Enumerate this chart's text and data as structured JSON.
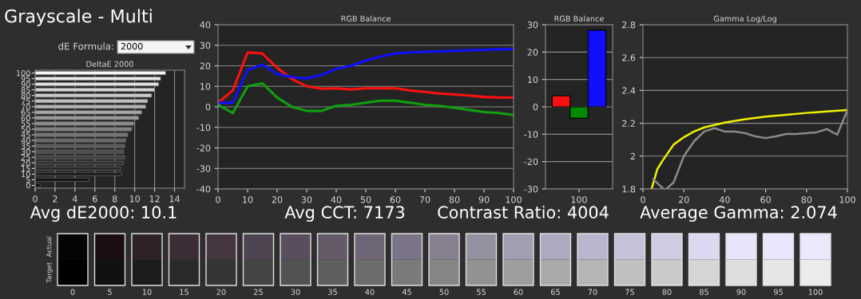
{
  "chart_data": [
    {
      "type": "bar",
      "orientation": "horizontal",
      "title": "DeltaE 2000",
      "annotations": [
        "Grayscale - Multi",
        "dE Formula:",
        "2000",
        "Avg dE2000: 10.1"
      ],
      "categories": [
        "100",
        "95",
        "90",
        "85",
        "80",
        "75",
        "70",
        "65",
        "60",
        "55",
        "50",
        "45",
        "40",
        "35",
        "30",
        "25",
        "20",
        "15",
        "10",
        "5",
        "0"
      ],
      "values": [
        13.1,
        12.6,
        12.4,
        12.0,
        11.7,
        11.3,
        11.1,
        10.7,
        10.4,
        9.9,
        9.7,
        9.3,
        9.1,
        9.0,
        8.9,
        9.0,
        8.9,
        8.6,
        8.7,
        5.4,
        0.5
      ],
      "colors": [
        "#f4f4f4",
        "#ebebeb",
        "#e0e0e0",
        "#d6d6d6",
        "#cbcbcb",
        "#c0c0c0",
        "#b4b4b4",
        "#a8a8a8",
        "#9c9c9c",
        "#8f8f8f",
        "#828282",
        "#757575",
        "#686868",
        "#5b5b5b",
        "#4e4e4e",
        "#424242",
        "#363636",
        "#2b2b2b",
        "#202020",
        "#161616",
        "#0c0c0c"
      ],
      "xlim": [
        0,
        15
      ],
      "xticks": [
        0,
        2,
        4,
        6,
        8,
        10,
        12,
        14
      ],
      "grid": "x"
    },
    {
      "type": "line",
      "title": "RGB Balance",
      "annotations": [
        "Avg CCT: 7173"
      ],
      "x": [
        0,
        5,
        10,
        15,
        20,
        25,
        30,
        35,
        40,
        45,
        50,
        55,
        60,
        65,
        70,
        75,
        80,
        85,
        90,
        95,
        100
      ],
      "series": [
        {
          "color": "#ff1010",
          "values": [
            2,
            8,
            26.5,
            26,
            19,
            13.5,
            10,
            8.8,
            9,
            8.5,
            9,
            9,
            9,
            8,
            7.3,
            6.5,
            6,
            5.5,
            4.8,
            4.6,
            4.5
          ]
        },
        {
          "color": "#1010ff",
          "values": [
            2,
            2,
            18,
            20.5,
            16,
            14.5,
            13.8,
            15.5,
            18.5,
            20,
            22.5,
            24.5,
            26,
            26.5,
            26.8,
            27,
            27.3,
            27.6,
            27.8,
            28,
            28.2
          ]
        },
        {
          "color": "#10a010",
          "values": [
            1,
            -3,
            10,
            11.5,
            4.5,
            0,
            -2,
            -2,
            0.5,
            1,
            2,
            3,
            3,
            2,
            1,
            0.5,
            -0.5,
            -1.5,
            -2.5,
            -3,
            -4
          ]
        }
      ],
      "xlim": [
        0,
        100
      ],
      "xticks": [
        0,
        10,
        20,
        30,
        40,
        50,
        60,
        70,
        80,
        90,
        100
      ],
      "ylim": [
        -40,
        40
      ],
      "yticks": [
        -40,
        -30,
        -20,
        -10,
        0,
        10,
        20,
        30,
        40
      ],
      "grid": "y"
    },
    {
      "type": "bar",
      "title": "RGB Balance",
      "annotations": [
        "Contrast Ratio: 4004"
      ],
      "categories": [
        "100"
      ],
      "series": [
        {
          "color": "#ff1010",
          "values": [
            4
          ]
        },
        {
          "color": "#008a00",
          "values": [
            -4.2
          ]
        },
        {
          "color": "#1010ff",
          "values": [
            28
          ]
        }
      ],
      "ylim": [
        -30,
        30
      ],
      "yticks": [
        -30,
        -20,
        -10,
        0,
        10,
        20,
        30
      ],
      "grid": "y"
    },
    {
      "type": "line",
      "title": "Gamma Log/Log",
      "annotations": [
        "Average Gamma: 2.074"
      ],
      "series": [
        {
          "color": "#f0f000",
          "x": [
            4.2,
            7,
            10,
            15,
            20,
            25,
            30,
            40,
            50,
            60,
            70,
            80,
            90,
            100
          ],
          "values": [
            1.8,
            1.92,
            1.98,
            2.07,
            2.115,
            2.15,
            2.175,
            2.204,
            2.225,
            2.24,
            2.252,
            2.263,
            2.272,
            2.28
          ]
        },
        {
          "color": "#8a8a8a",
          "x": [
            5,
            10,
            11.5,
            15,
            20,
            25,
            30,
            35,
            40,
            45,
            50,
            55,
            60,
            65,
            70,
            75,
            80,
            85,
            90,
            95,
            100
          ],
          "values": [
            1.86,
            1.8,
            1.8,
            1.84,
            2.0,
            2.09,
            2.15,
            2.17,
            2.15,
            2.15,
            2.14,
            2.12,
            2.11,
            2.12,
            2.135,
            2.135,
            2.14,
            2.145,
            2.165,
            2.13,
            2.28
          ]
        }
      ],
      "xlim": [
        0,
        100
      ],
      "xticks": [
        0,
        20,
        40,
        60,
        80,
        100
      ],
      "ylim": [
        1.8,
        2.8
      ],
      "yticks": [
        1.8,
        {
          "value": 2.0,
          "label": "2"
        },
        2.2,
        2.4,
        2.6,
        2.8
      ],
      "grid": "y"
    },
    {
      "type": "heatmap",
      "categories": [
        "0",
        "5",
        "10",
        "15",
        "20",
        "25",
        "30",
        "35",
        "40",
        "45",
        "50",
        "55",
        "60",
        "65",
        "70",
        "75",
        "80",
        "85",
        "90",
        "95",
        "100"
      ],
      "y_categories": [
        "Actual",
        "Target"
      ],
      "cells": [
        [
          null,
          null,
          null,
          null,
          null,
          null,
          null,
          null,
          null,
          null,
          null,
          null,
          null,
          null,
          null,
          null,
          null,
          null,
          null,
          null,
          null
        ],
        [
          null,
          null,
          null,
          null,
          null,
          null,
          null,
          null,
          null,
          null,
          null,
          null,
          null,
          null,
          null,
          null,
          null,
          null,
          null,
          null,
          null
        ]
      ],
      "colors": [
        [
          "#050305",
          "#1a0e14",
          "#2e2228",
          "#3a2d35",
          "#45363f",
          "#4f4452",
          "#5a4e5e",
          "#645a68",
          "#6e6676",
          "#7a7486",
          "#878090",
          "#9590a0",
          "#a29eb2",
          "#adaac0",
          "#b8b5cc",
          "#c4c2d6",
          "#d0cde2",
          "#dcd8f0",
          "#e8e4fa",
          "#eae6fc",
          "#ece8fe"
        ],
        [
          "#000000",
          "#111111",
          "#1c1c1c",
          "#2a2a2a",
          "#353535",
          "#444444",
          "#525252",
          "#5f5f5f",
          "#6c6c6c",
          "#7a7a7a",
          "#868686",
          "#929292",
          "#9e9e9e",
          "#aaaaaa",
          "#b5b5b5",
          "#c0c0c0",
          "#cacaca",
          "#d5d5d5",
          "#dedede",
          "#e6e6e6",
          "#ececec"
        ]
      ]
    }
  ]
}
